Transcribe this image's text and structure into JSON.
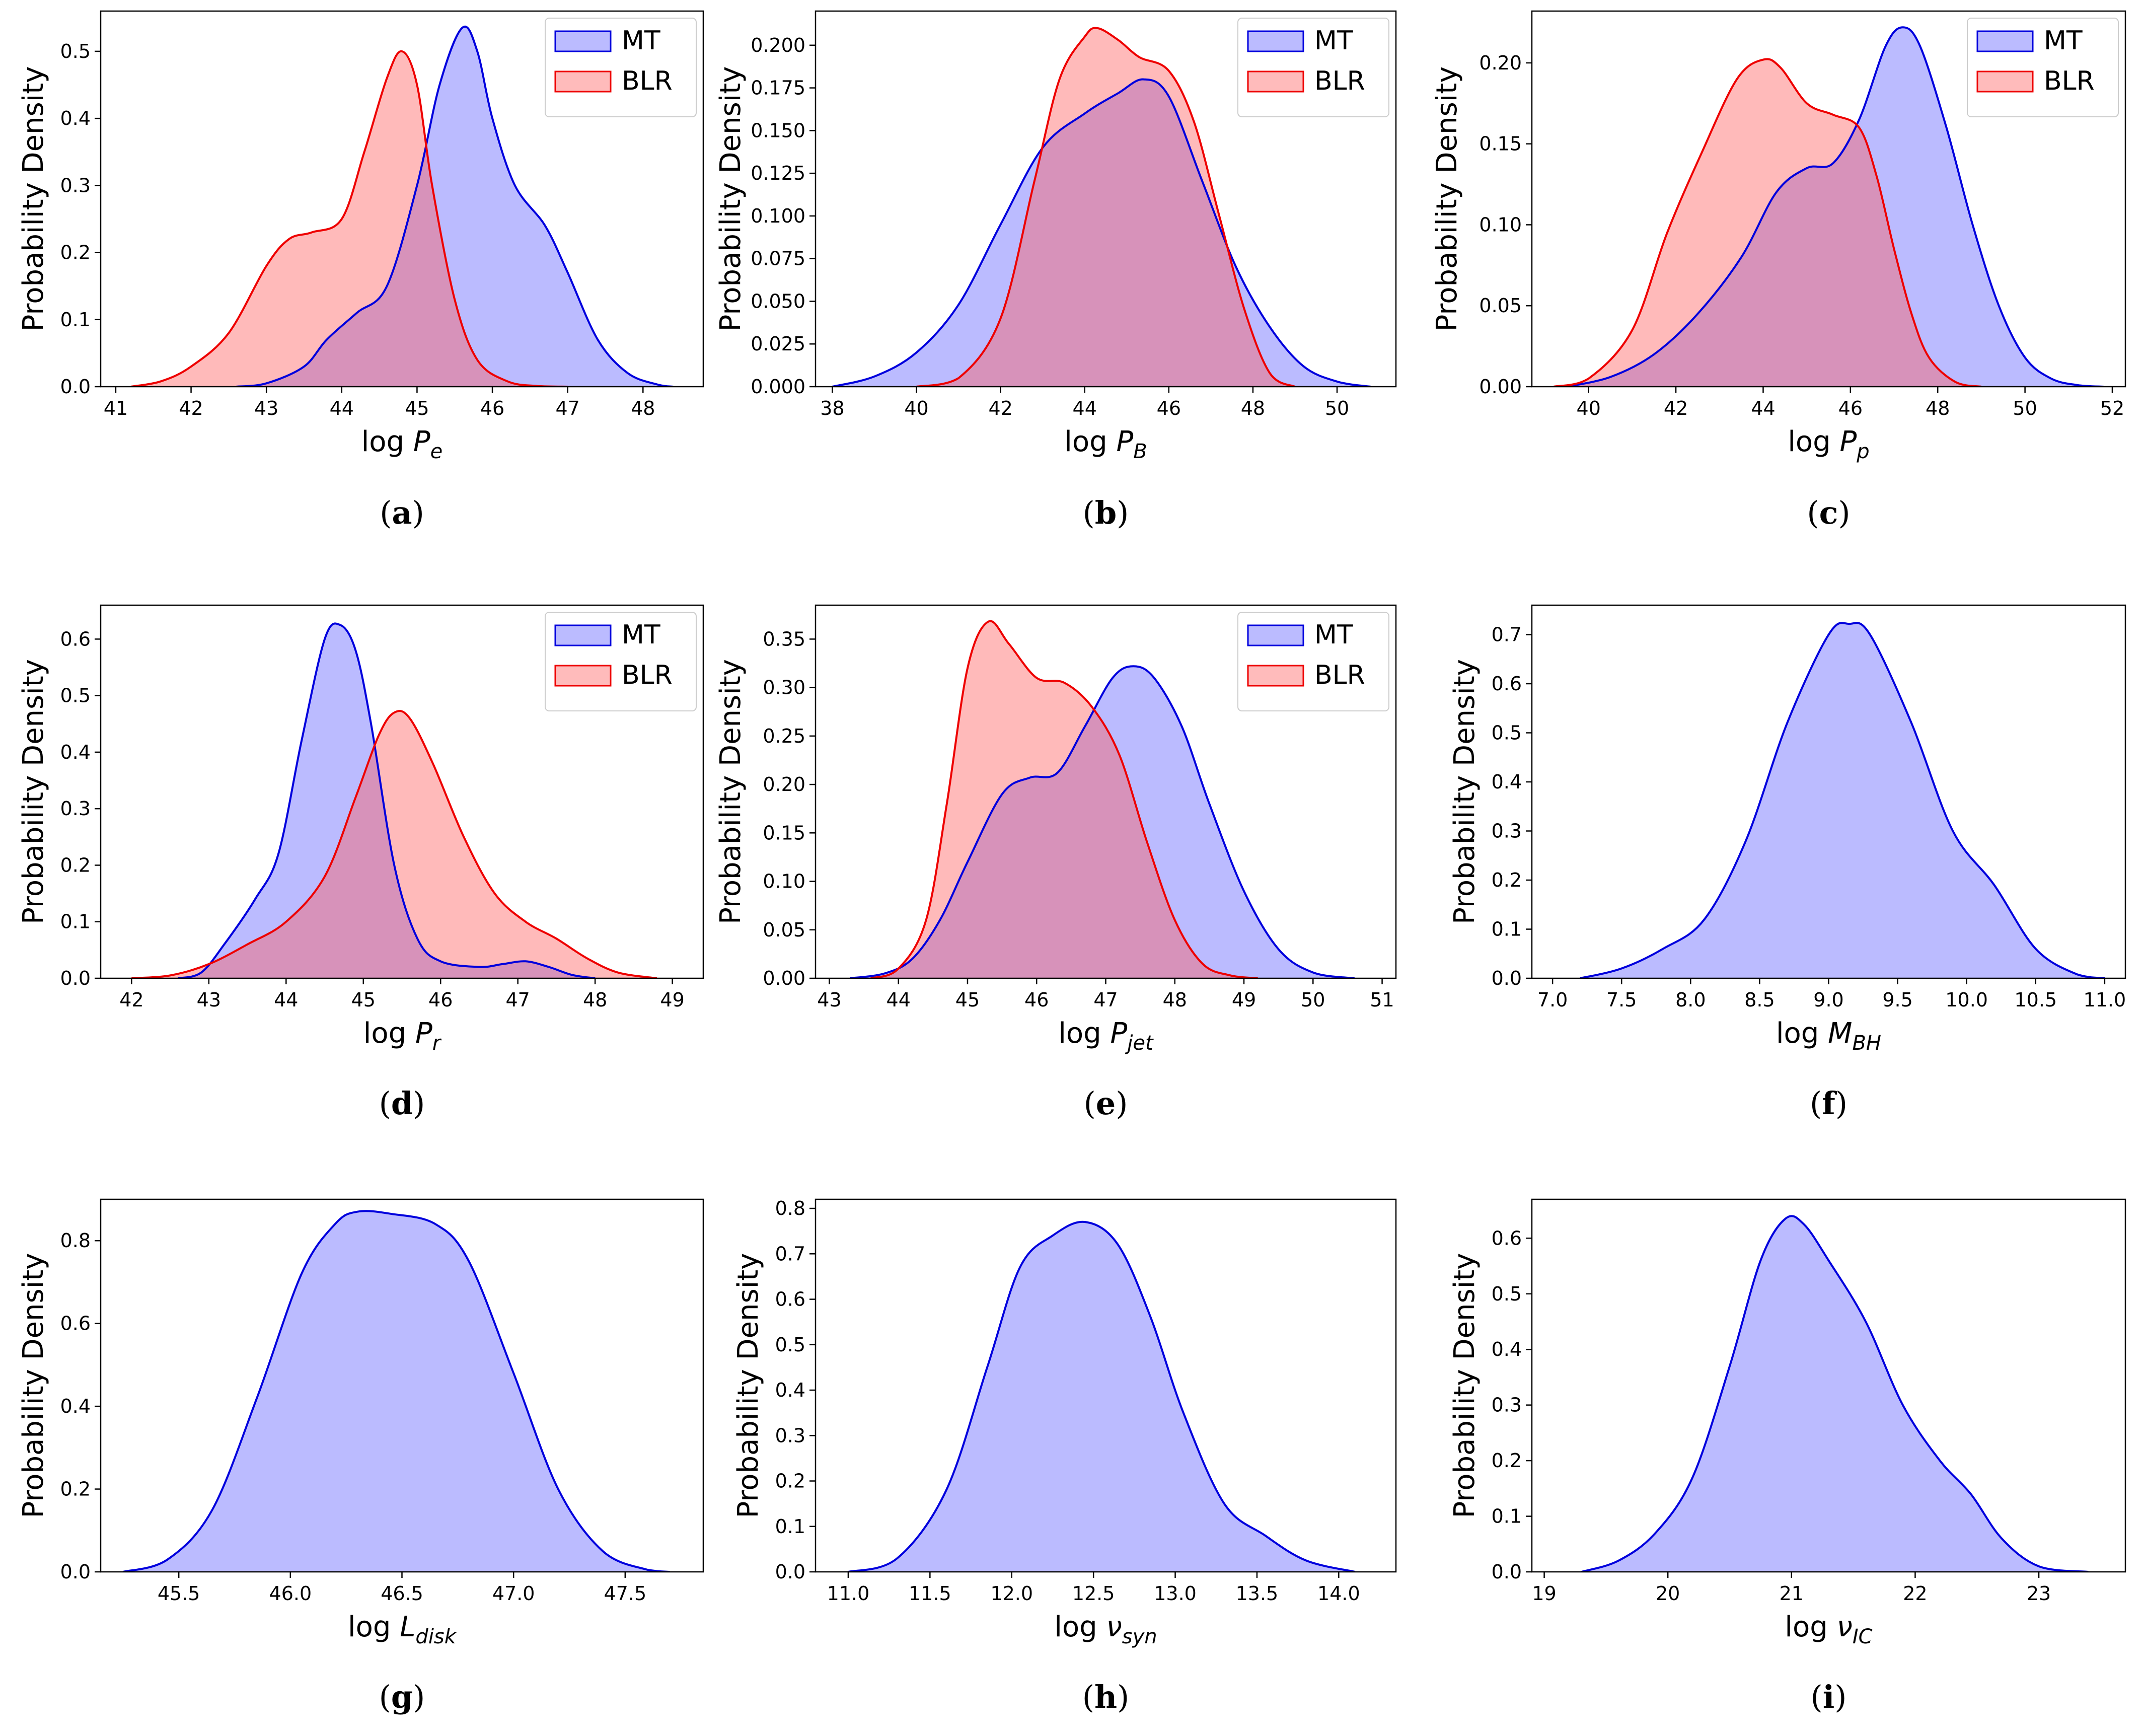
{
  "colors": {
    "mt_line": "#0000dd",
    "mt_fill": "#bbbbff",
    "blr_line": "#ee0000",
    "blr_fill": "#ffbbbb",
    "overlap": "#cc8fc6"
  },
  "chart_data": [
    {
      "type": "area",
      "caption": "(a)",
      "ylabel": "Probability Density",
      "xlabel_base": "log ",
      "xlabel_var": "P",
      "xlabel_sub": "e",
      "xlim": [
        40.8,
        48.8
      ],
      "ylim": [
        0,
        0.56
      ],
      "xticks": [
        41,
        42,
        43,
        44,
        45,
        46,
        47,
        48
      ],
      "xtick_labels": [
        "41",
        "42",
        "43",
        "44",
        "45",
        "46",
        "47",
        "48"
      ],
      "yticks": [
        0,
        0.1,
        0.2,
        0.3,
        0.4,
        0.5
      ],
      "ytick_labels": [
        "0.0",
        "0.1",
        "0.2",
        "0.3",
        "0.4",
        "0.5"
      ],
      "legend": [
        "MT",
        "BLR"
      ],
      "series": [
        {
          "name": "MT",
          "x": [
            42.6,
            43.0,
            43.5,
            43.8,
            44.2,
            44.6,
            45.0,
            45.3,
            45.6,
            45.8,
            46.0,
            46.3,
            46.7,
            47.0,
            47.4,
            47.8,
            48.2,
            48.4
          ],
          "y": [
            0,
            0.005,
            0.03,
            0.07,
            0.11,
            0.15,
            0.3,
            0.45,
            0.535,
            0.5,
            0.4,
            0.3,
            0.24,
            0.17,
            0.07,
            0.02,
            0.003,
            0
          ]
        },
        {
          "name": "BLR",
          "x": [
            41.2,
            41.6,
            42.0,
            42.5,
            43.0,
            43.3,
            43.6,
            44.0,
            44.3,
            44.6,
            44.8,
            45.0,
            45.2,
            45.5,
            45.8,
            46.2,
            46.6,
            47.0
          ],
          "y": [
            0,
            0.008,
            0.03,
            0.08,
            0.18,
            0.22,
            0.23,
            0.25,
            0.35,
            0.46,
            0.5,
            0.45,
            0.3,
            0.13,
            0.04,
            0.008,
            0.001,
            0
          ]
        }
      ]
    },
    {
      "type": "area",
      "caption": "(b)",
      "ylabel": "Probability Density",
      "xlabel_base": "log ",
      "xlabel_var": "P",
      "xlabel_sub": "B",
      "xlim": [
        37.6,
        51.4
      ],
      "ylim": [
        0,
        0.22
      ],
      "xticks": [
        38,
        40,
        42,
        44,
        46,
        48,
        50
      ],
      "xtick_labels": [
        "38",
        "40",
        "42",
        "44",
        "46",
        "48",
        "50"
      ],
      "yticks": [
        0,
        0.025,
        0.05,
        0.075,
        0.1,
        0.125,
        0.15,
        0.175,
        0.2
      ],
      "ytick_labels": [
        "0.000",
        "0.025",
        "0.050",
        "0.075",
        "0.100",
        "0.125",
        "0.150",
        "0.175",
        "0.200"
      ],
      "legend": [
        "MT",
        "BLR"
      ],
      "series": [
        {
          "name": "MT",
          "x": [
            38.0,
            39.0,
            40.0,
            41.0,
            42.0,
            43.0,
            44.0,
            44.8,
            45.4,
            46.0,
            46.8,
            47.6,
            48.4,
            49.2,
            50.0,
            50.8
          ],
          "y": [
            0,
            0.006,
            0.02,
            0.048,
            0.095,
            0.14,
            0.16,
            0.172,
            0.18,
            0.17,
            0.12,
            0.07,
            0.035,
            0.012,
            0.003,
            0
          ]
        },
        {
          "name": "BLR",
          "x": [
            40.0,
            41.0,
            42.0,
            42.8,
            43.4,
            44.0,
            44.3,
            44.8,
            45.3,
            46.0,
            46.6,
            47.2,
            47.8,
            48.4,
            49.0
          ],
          "y": [
            0,
            0.005,
            0.04,
            0.12,
            0.18,
            0.205,
            0.21,
            0.203,
            0.193,
            0.185,
            0.155,
            0.1,
            0.045,
            0.008,
            0
          ]
        }
      ]
    },
    {
      "type": "area",
      "caption": "(c)",
      "ylabel": "Probability Density",
      "xlabel_base": "log ",
      "xlabel_var": "P",
      "xlabel_sub": "p",
      "xlim": [
        38.7,
        52.3
      ],
      "ylim": [
        0,
        0.232
      ],
      "xticks": [
        40,
        42,
        44,
        46,
        48,
        50,
        52
      ],
      "xtick_labels": [
        "40",
        "42",
        "44",
        "46",
        "48",
        "50",
        "52"
      ],
      "yticks": [
        0,
        0.05,
        0.1,
        0.15,
        0.2
      ],
      "ytick_labels": [
        "0.00",
        "0.05",
        "0.10",
        "0.15",
        "0.20"
      ],
      "legend": [
        "MT",
        "BLR"
      ],
      "series": [
        {
          "name": "MT",
          "x": [
            39.5,
            40.5,
            41.5,
            42.5,
            43.5,
            44.3,
            45.0,
            45.6,
            46.2,
            46.8,
            47.2,
            47.6,
            48.2,
            48.8,
            49.4,
            50.0,
            50.6,
            51.2,
            51.8
          ],
          "y": [
            0,
            0.006,
            0.02,
            0.045,
            0.08,
            0.12,
            0.135,
            0.138,
            0.165,
            0.21,
            0.222,
            0.21,
            0.16,
            0.1,
            0.05,
            0.018,
            0.005,
            0.001,
            0
          ]
        },
        {
          "name": "BLR",
          "x": [
            39.2,
            40.0,
            41.0,
            41.8,
            42.6,
            43.4,
            44.0,
            44.4,
            45.0,
            45.6,
            46.2,
            46.6,
            47.0,
            47.4,
            47.8,
            48.4,
            49.0
          ],
          "y": [
            0,
            0.005,
            0.035,
            0.095,
            0.145,
            0.19,
            0.202,
            0.197,
            0.175,
            0.168,
            0.16,
            0.13,
            0.085,
            0.045,
            0.018,
            0.003,
            0
          ]
        }
      ]
    },
    {
      "type": "area",
      "caption": "(d)",
      "ylabel": "Probability Density",
      "xlabel_base": "log ",
      "xlabel_var": "P",
      "xlabel_sub": "r",
      "xlim": [
        41.6,
        49.4
      ],
      "ylim": [
        0,
        0.66
      ],
      "xticks": [
        42,
        43,
        44,
        45,
        46,
        47,
        48,
        49
      ],
      "xtick_labels": [
        "42",
        "43",
        "44",
        "45",
        "46",
        "47",
        "48",
        "49"
      ],
      "yticks": [
        0,
        0.1,
        0.2,
        0.3,
        0.4,
        0.5,
        0.6
      ],
      "ytick_labels": [
        "0.0",
        "0.1",
        "0.2",
        "0.3",
        "0.4",
        "0.5",
        "0.6"
      ],
      "legend": [
        "MT",
        "BLR"
      ],
      "series": [
        {
          "name": "MT",
          "x": [
            42.6,
            42.9,
            43.2,
            43.6,
            43.9,
            44.2,
            44.5,
            44.7,
            44.9,
            45.1,
            45.4,
            45.7,
            46.0,
            46.5,
            46.8,
            47.1,
            47.4,
            47.7,
            48.0
          ],
          "y": [
            0,
            0.01,
            0.06,
            0.14,
            0.22,
            0.42,
            0.6,
            0.625,
            0.58,
            0.45,
            0.2,
            0.07,
            0.03,
            0.02,
            0.025,
            0.03,
            0.02,
            0.006,
            0
          ]
        },
        {
          "name": "BLR",
          "x": [
            42.0,
            42.5,
            43.0,
            43.5,
            44.0,
            44.5,
            44.9,
            45.2,
            45.4,
            45.6,
            45.9,
            46.3,
            46.7,
            47.1,
            47.5,
            47.9,
            48.3,
            48.8
          ],
          "y": [
            0,
            0.005,
            0.025,
            0.06,
            0.1,
            0.18,
            0.32,
            0.43,
            0.47,
            0.46,
            0.38,
            0.25,
            0.15,
            0.1,
            0.07,
            0.035,
            0.01,
            0
          ]
        }
      ]
    },
    {
      "type": "area",
      "caption": "(e)",
      "ylabel": "Probability Density",
      "xlabel_base": "log ",
      "xlabel_var": "P",
      "xlabel_sub": "jet",
      "xlim": [
        42.8,
        51.2
      ],
      "ylim": [
        0,
        0.385
      ],
      "xticks": [
        43,
        44,
        45,
        46,
        47,
        48,
        49,
        50,
        51
      ],
      "xtick_labels": [
        "43",
        "44",
        "45",
        "46",
        "47",
        "48",
        "49",
        "50",
        "51"
      ],
      "yticks": [
        0,
        0.05,
        0.1,
        0.15,
        0.2,
        0.25,
        0.3,
        0.35
      ],
      "ytick_labels": [
        "0.00",
        "0.05",
        "0.10",
        "0.15",
        "0.20",
        "0.25",
        "0.30",
        "0.35"
      ],
      "legend": [
        "MT",
        "BLR"
      ],
      "series": [
        {
          "name": "MT",
          "x": [
            43.3,
            43.8,
            44.2,
            44.6,
            45.0,
            45.5,
            45.9,
            46.3,
            46.7,
            47.1,
            47.4,
            47.7,
            48.1,
            48.5,
            49.0,
            49.5,
            50.0,
            50.6
          ],
          "y": [
            0,
            0.005,
            0.02,
            0.06,
            0.12,
            0.19,
            0.207,
            0.212,
            0.26,
            0.31,
            0.322,
            0.31,
            0.26,
            0.18,
            0.09,
            0.03,
            0.006,
            0
          ]
        },
        {
          "name": "BLR",
          "x": [
            43.6,
            44.0,
            44.4,
            44.7,
            45.0,
            45.3,
            45.6,
            46.0,
            46.4,
            46.8,
            47.2,
            47.6,
            48.0,
            48.4,
            48.8,
            49.2
          ],
          "y": [
            0,
            0.01,
            0.06,
            0.18,
            0.32,
            0.368,
            0.345,
            0.31,
            0.305,
            0.28,
            0.23,
            0.14,
            0.06,
            0.015,
            0.003,
            0
          ]
        }
      ]
    },
    {
      "type": "area",
      "caption": "(f)",
      "ylabel": "Probability Density",
      "xlabel_base": "log ",
      "xlabel_var": "M",
      "xlabel_sub": "BH",
      "xlim": [
        6.85,
        11.15
      ],
      "ylim": [
        0,
        0.76
      ],
      "xticks": [
        7.0,
        7.5,
        8.0,
        8.5,
        9.0,
        9.5,
        10.0,
        10.5,
        11.0
      ],
      "xtick_labels": [
        "7.0",
        "7.5",
        "8.0",
        "8.5",
        "9.0",
        "9.5",
        "10.0",
        "10.5",
        "11.0"
      ],
      "yticks": [
        0,
        0.1,
        0.2,
        0.3,
        0.4,
        0.5,
        0.6,
        0.7
      ],
      "ytick_labels": [
        "0.0",
        "0.1",
        "0.2",
        "0.3",
        "0.4",
        "0.5",
        "0.6",
        "0.7"
      ],
      "legend": [],
      "series": [
        {
          "name": "MT",
          "x": [
            7.2,
            7.5,
            7.8,
            8.1,
            8.4,
            8.7,
            9.0,
            9.15,
            9.3,
            9.6,
            9.9,
            10.2,
            10.5,
            10.8,
            11.0
          ],
          "y": [
            0,
            0.02,
            0.06,
            0.12,
            0.28,
            0.52,
            0.7,
            0.722,
            0.7,
            0.52,
            0.3,
            0.19,
            0.06,
            0.008,
            0
          ]
        }
      ]
    },
    {
      "type": "area",
      "caption": "(g)",
      "ylabel": "Probability Density",
      "xlabel_base": "log ",
      "xlabel_var": "L",
      "xlabel_sub": "disk",
      "xlim": [
        45.15,
        47.85
      ],
      "ylim": [
        0,
        0.9
      ],
      "xticks": [
        45.5,
        46.0,
        46.5,
        47.0,
        47.5
      ],
      "xtick_labels": [
        "45.5",
        "46.0",
        "46.5",
        "47.0",
        "47.5"
      ],
      "yticks": [
        0,
        0.2,
        0.4,
        0.6,
        0.8
      ],
      "ytick_labels": [
        "0.0",
        "0.2",
        "0.4",
        "0.6",
        "0.8"
      ],
      "legend": [],
      "series": [
        {
          "name": "MT",
          "x": [
            45.25,
            45.45,
            45.65,
            45.85,
            46.05,
            46.2,
            46.3,
            46.45,
            46.65,
            46.8,
            47.0,
            47.2,
            47.4,
            47.6,
            47.7
          ],
          "y": [
            0,
            0.03,
            0.15,
            0.42,
            0.72,
            0.84,
            0.87,
            0.865,
            0.84,
            0.75,
            0.48,
            0.2,
            0.05,
            0.005,
            0
          ]
        }
      ]
    },
    {
      "type": "area",
      "caption": "(h)",
      "ylabel": "Probability Density",
      "xlabel_base": "log ",
      "xlabel_var": "ν",
      "xlabel_sub": "syn",
      "xlim": [
        10.8,
        14.35
      ],
      "ylim": [
        0,
        0.82
      ],
      "xticks": [
        11.0,
        11.5,
        12.0,
        12.5,
        13.0,
        13.5,
        14.0
      ],
      "xtick_labels": [
        "11.0",
        "11.5",
        "12.0",
        "12.5",
        "13.0",
        "13.5",
        "14.0"
      ],
      "yticks": [
        0,
        0.1,
        0.2,
        0.3,
        0.4,
        0.5,
        0.6,
        0.7,
        0.8
      ],
      "ytick_labels": [
        "0.0",
        "0.1",
        "0.2",
        "0.3",
        "0.4",
        "0.5",
        "0.6",
        "0.7",
        "0.8"
      ],
      "legend": [],
      "series": [
        {
          "name": "MT",
          "x": [
            11.0,
            11.3,
            11.6,
            11.85,
            12.05,
            12.25,
            12.45,
            12.65,
            12.85,
            13.05,
            13.3,
            13.55,
            13.8,
            14.1
          ],
          "y": [
            0,
            0.03,
            0.18,
            0.45,
            0.67,
            0.74,
            0.77,
            0.72,
            0.56,
            0.35,
            0.15,
            0.08,
            0.025,
            0
          ]
        }
      ]
    },
    {
      "type": "area",
      "caption": "(i)",
      "ylabel": "Probability Density",
      "xlabel_base": "log ",
      "xlabel_var": "ν",
      "xlabel_sub": "IC",
      "xlim": [
        18.9,
        23.7
      ],
      "ylim": [
        0,
        0.67
      ],
      "xticks": [
        19,
        20,
        21,
        22,
        23
      ],
      "xtick_labels": [
        "19",
        "20",
        "21",
        "22",
        "23"
      ],
      "yticks": [
        0,
        0.1,
        0.2,
        0.3,
        0.4,
        0.5,
        0.6
      ],
      "ytick_labels": [
        "0.0",
        "0.1",
        "0.2",
        "0.3",
        "0.4",
        "0.5",
        "0.6"
      ],
      "legend": [],
      "series": [
        {
          "name": "MT",
          "x": [
            19.3,
            19.6,
            19.9,
            20.2,
            20.5,
            20.75,
            20.95,
            21.1,
            21.3,
            21.6,
            21.9,
            22.2,
            22.45,
            22.7,
            23.0,
            23.4
          ],
          "y": [
            0,
            0.02,
            0.07,
            0.17,
            0.37,
            0.56,
            0.635,
            0.625,
            0.56,
            0.45,
            0.3,
            0.2,
            0.14,
            0.06,
            0.01,
            0
          ]
        }
      ]
    }
  ]
}
